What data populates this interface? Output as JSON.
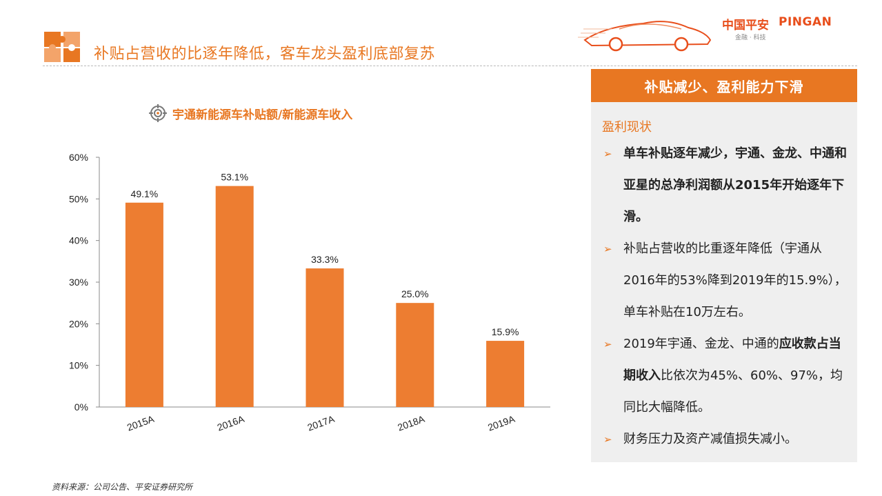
{
  "header": {
    "title": "补贴占营收的比逐年降低，客车龙头盈利底部复苏",
    "brand_cn": "中国平安",
    "brand_en": "PINGAN",
    "brand_tagline": "金融 · 科技"
  },
  "chart_heading": "宇通新能源车补贴额/新能源车收入",
  "chart_data": {
    "type": "bar",
    "title": "宇通新能源车补贴额/新能源车收入",
    "xlabel": "",
    "ylabel": "",
    "categories": [
      "2015A",
      "2016A",
      "2017A",
      "2018A",
      "2019A"
    ],
    "values": [
      49.1,
      53.1,
      33.3,
      25.0,
      15.9
    ],
    "value_labels": [
      "49.1%",
      "53.1%",
      "33.3%",
      "25.0%",
      "15.9%"
    ],
    "ylim": [
      0,
      60
    ],
    "yticks": [
      "0%",
      "10%",
      "20%",
      "30%",
      "40%",
      "50%",
      "60%"
    ],
    "grid": false,
    "legend": "none",
    "bar_color": "#ed7d31"
  },
  "panel": {
    "header": "补贴减少、盈利能力下滑",
    "section_title": "盈利现状",
    "bullets": [
      {
        "parts": [
          {
            "text": "单车补贴逐年减少，宇通、金龙、中通和亚星的总净利润额从2015年开始逐年下滑。",
            "bold": true
          }
        ]
      },
      {
        "parts": [
          {
            "text": "补贴占营收的比重逐年降低（宇通从2016年的53%降到2019年的15.9%），单车补贴在10万左右。",
            "bold": false
          }
        ]
      },
      {
        "parts": [
          {
            "text": "2019年宇通、金龙、中通的",
            "bold": false
          },
          {
            "text": "应收款占当期收入",
            "bold": true
          },
          {
            "text": "比依次为45%、60%、97%，均同比大幅降低。",
            "bold": false
          }
        ]
      },
      {
        "parts": [
          {
            "text": "财务压力及资产减值损失减小。",
            "bold": false
          }
        ]
      }
    ],
    "arrow": "➢"
  },
  "source": "资料来源：公司公告、平安证券研究所",
  "colors": {
    "accent": "#e87722",
    "bar": "#ed7d31",
    "panel_bg": "#efefef",
    "brand": "#e84e1b"
  }
}
